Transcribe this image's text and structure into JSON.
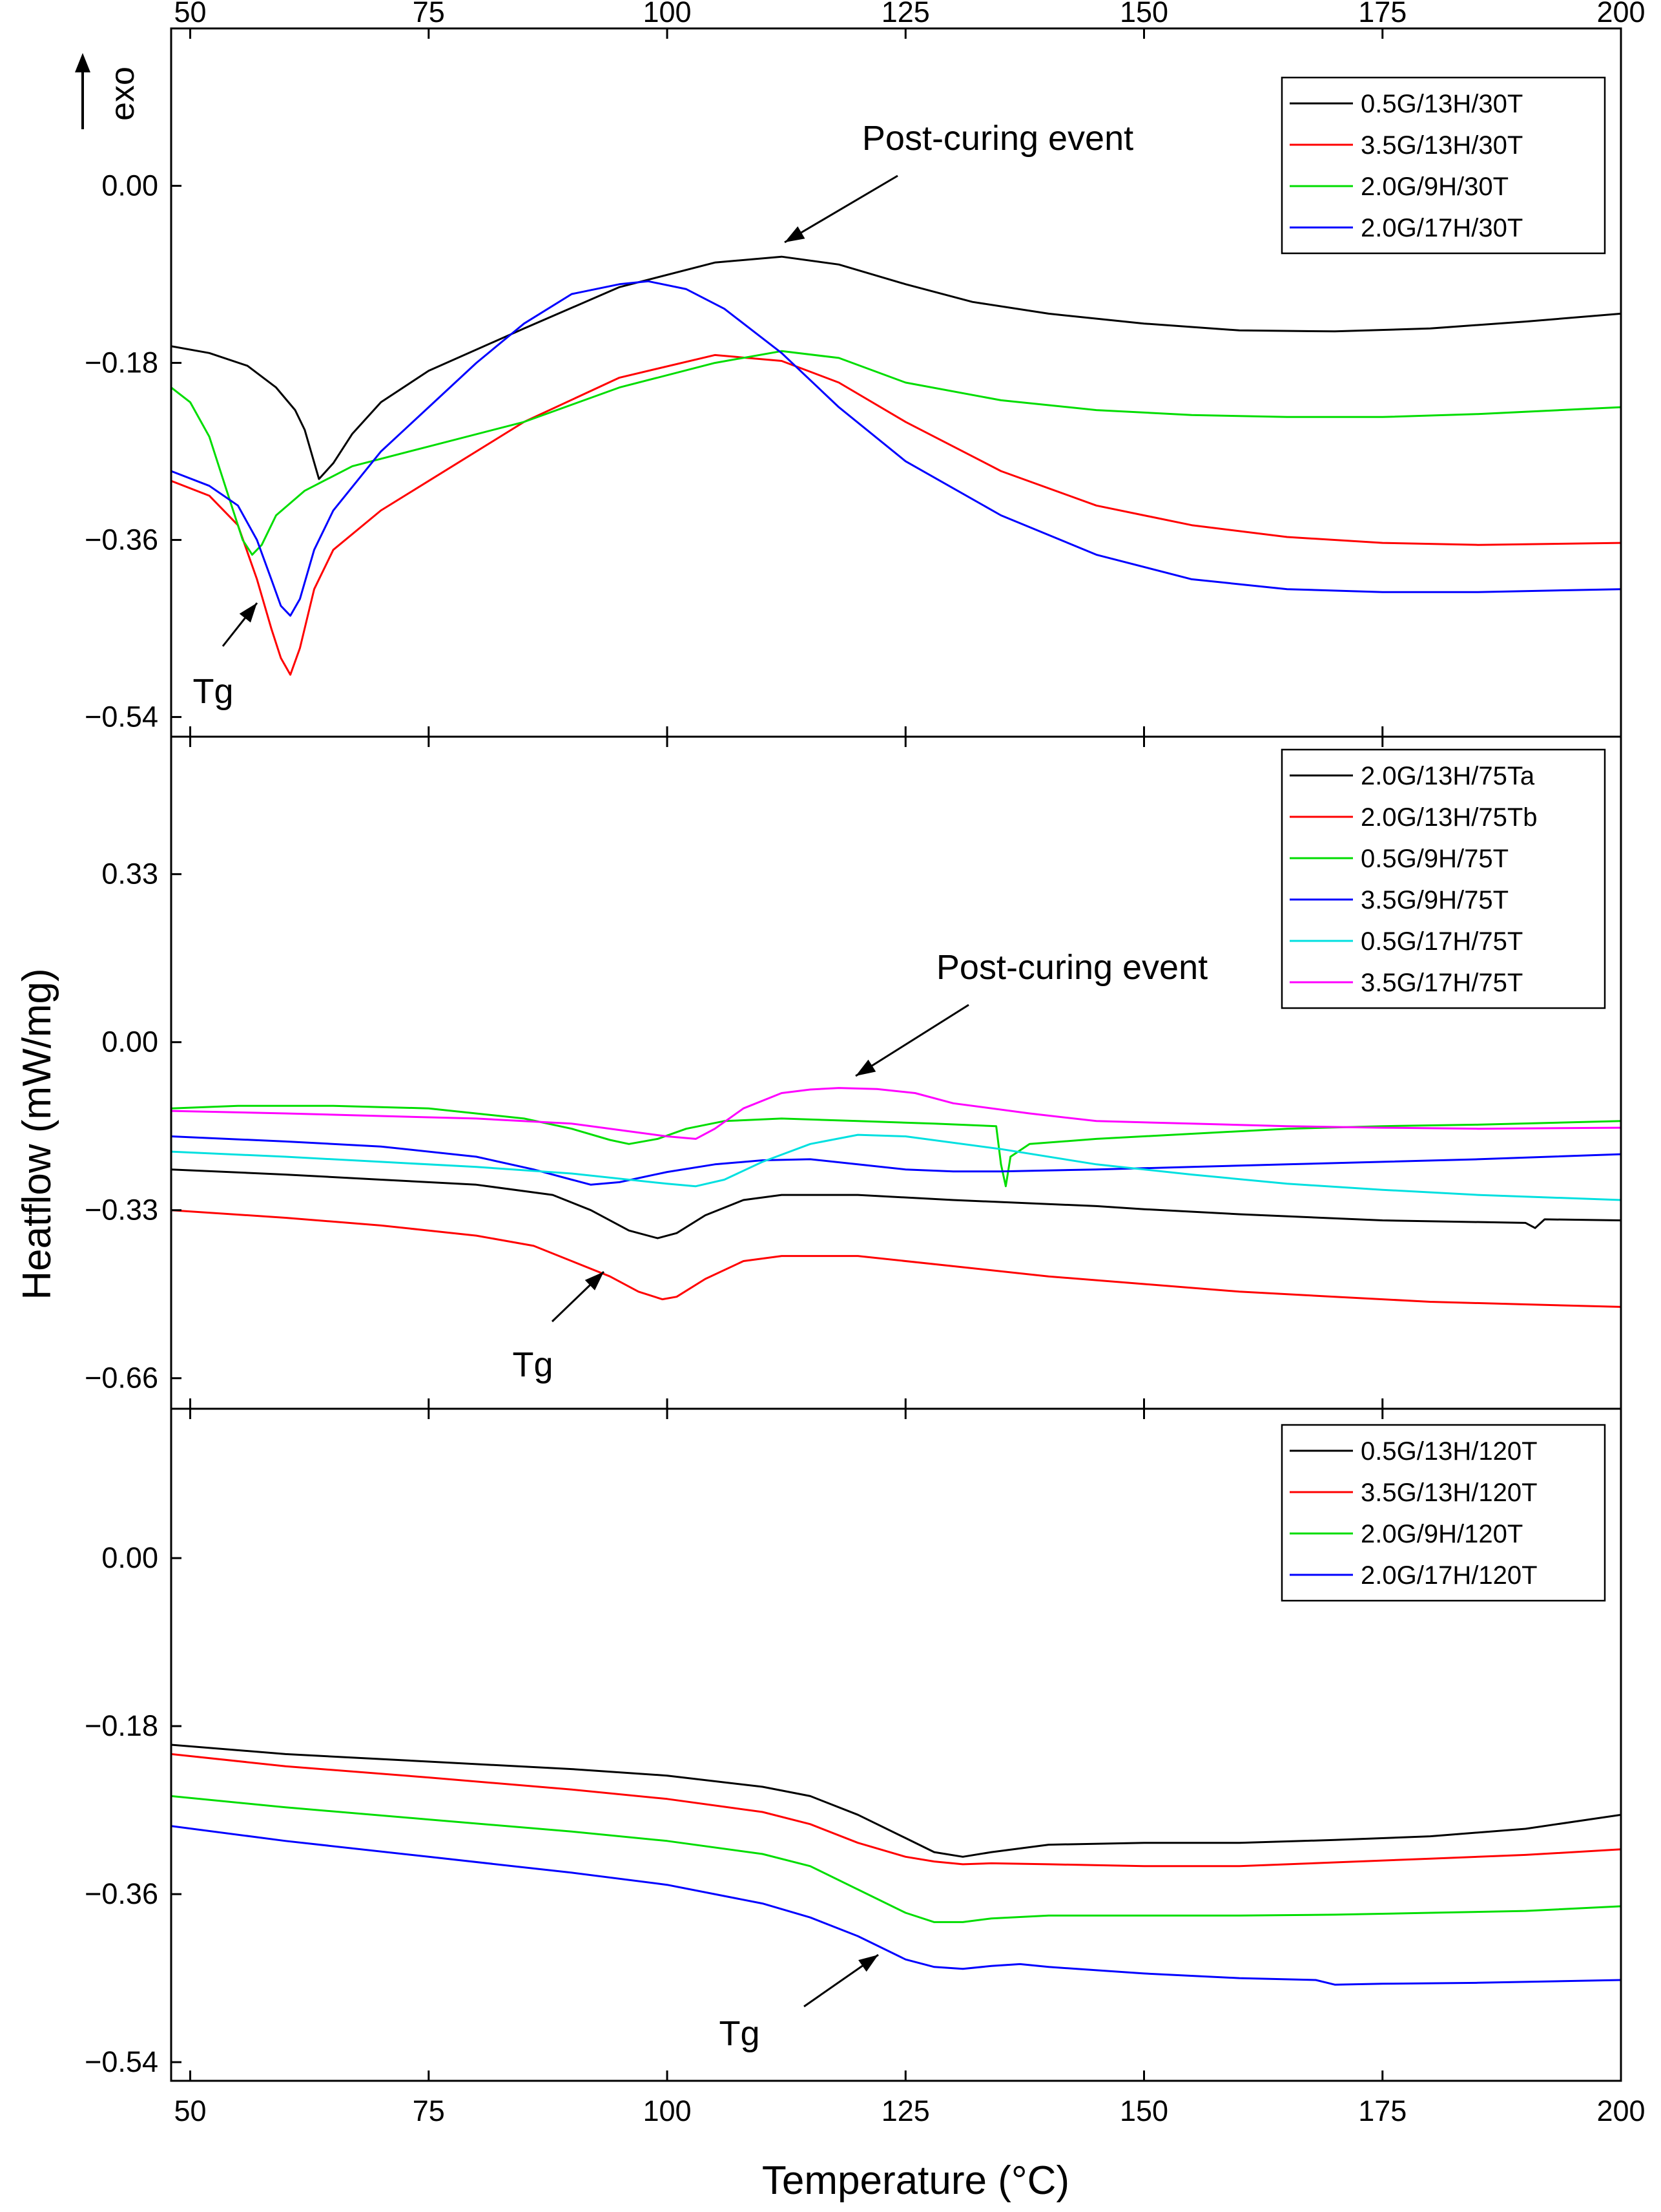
{
  "figure": {
    "xlabel": "Temperature (°C)",
    "ylabel": "Heatflow (mW/mg)",
    "exo_label": "exo"
  },
  "chart_data": [
    {
      "type": "line",
      "panel": "top",
      "xlim": [
        48,
        200
      ],
      "ylim": [
        -0.56,
        0.16
      ],
      "xticks": [
        50,
        75,
        100,
        125,
        150,
        175,
        200
      ],
      "yticks": [
        0.0,
        -0.18,
        -0.36,
        -0.54
      ],
      "ytick_labels": [
        "0.00",
        "−0.18",
        "−0.36",
        "−0.54"
      ],
      "legend_position": "top-right",
      "annotations": [
        {
          "text": "Post-curing event",
          "x": 111,
          "y": -0.025
        },
        {
          "text": "Tg",
          "x": 57,
          "y": -0.415
        }
      ],
      "series": [
        {
          "name": "0.5G/13H/30T",
          "color": "#000000",
          "x": [
            48,
            52,
            56,
            59,
            61,
            62,
            63.5,
            65,
            67,
            70,
            75,
            85,
            95,
            105,
            112,
            118,
            125,
            132,
            140,
            150,
            160,
            170,
            180,
            190,
            200
          ],
          "y": [
            -0.163,
            -0.17,
            -0.183,
            -0.205,
            -0.228,
            -0.248,
            -0.298,
            -0.282,
            -0.252,
            -0.22,
            -0.188,
            -0.145,
            -0.103,
            -0.078,
            -0.072,
            -0.08,
            -0.1,
            -0.118,
            -0.13,
            -0.14,
            -0.147,
            -0.148,
            -0.145,
            -0.138,
            -0.13
          ]
        },
        {
          "name": "3.5G/13H/30T",
          "color": "#ff0000",
          "x": [
            48,
            52,
            55,
            57,
            58.5,
            59.5,
            60.5,
            61.5,
            63,
            65,
            70,
            75,
            85,
            95,
            105,
            112,
            118,
            125,
            135,
            145,
            155,
            165,
            175,
            185,
            200
          ],
          "y": [
            -0.3,
            -0.315,
            -0.345,
            -0.4,
            -0.45,
            -0.48,
            -0.497,
            -0.47,
            -0.41,
            -0.37,
            -0.33,
            -0.3,
            -0.24,
            -0.195,
            -0.172,
            -0.178,
            -0.2,
            -0.24,
            -0.29,
            -0.325,
            -0.345,
            -0.357,
            -0.363,
            -0.365,
            -0.363
          ]
        },
        {
          "name": "2.0G/9H/30T",
          "color": "#00dd00",
          "x": [
            48,
            50,
            52,
            54,
            55.5,
            56.5,
            57.5,
            59,
            62,
            67,
            75,
            85,
            95,
            105,
            112,
            118,
            125,
            135,
            145,
            155,
            165,
            175,
            185,
            200
          ],
          "y": [
            -0.205,
            -0.22,
            -0.255,
            -0.315,
            -0.36,
            -0.375,
            -0.365,
            -0.335,
            -0.31,
            -0.285,
            -0.265,
            -0.24,
            -0.205,
            -0.18,
            -0.168,
            -0.175,
            -0.2,
            -0.218,
            -0.228,
            -0.233,
            -0.235,
            -0.235,
            -0.232,
            -0.225
          ]
        },
        {
          "name": "2.0G/17H/30T",
          "color": "#0000ff",
          "x": [
            48,
            52,
            55,
            57,
            58.5,
            59.5,
            60.5,
            61.5,
            63,
            65,
            70,
            75,
            80,
            85,
            90,
            95,
            98,
            102,
            106,
            112,
            118,
            125,
            135,
            145,
            155,
            165,
            175,
            185,
            200
          ],
          "y": [
            -0.29,
            -0.305,
            -0.325,
            -0.36,
            -0.4,
            -0.427,
            -0.437,
            -0.42,
            -0.37,
            -0.33,
            -0.27,
            -0.225,
            -0.18,
            -0.14,
            -0.11,
            -0.1,
            -0.097,
            -0.105,
            -0.125,
            -0.17,
            -0.225,
            -0.28,
            -0.335,
            -0.375,
            -0.4,
            -0.41,
            -0.413,
            -0.413,
            -0.41
          ]
        }
      ]
    },
    {
      "type": "line",
      "panel": "middle",
      "xlim": [
        48,
        200
      ],
      "ylim": [
        -0.72,
        0.6
      ],
      "xticks": [
        50,
        75,
        100,
        125,
        150,
        175,
        200
      ],
      "yticks": [
        0.33,
        0.0,
        -0.33,
        -0.66
      ],
      "ytick_labels": [
        "0.33",
        "0.00",
        "−0.33",
        "−0.66"
      ],
      "legend_position": "top-right",
      "annotations": [
        {
          "text": "Post-curing event",
          "x": 119,
          "y": 0.12
        },
        {
          "text": "Tg",
          "x": 86,
          "y": -0.64
        }
      ],
      "series": [
        {
          "name": "2.0G/13H/75Ta",
          "color": "#000000",
          "x": [
            48,
            60,
            70,
            80,
            88,
            92,
            96,
            99,
            101,
            104,
            108,
            112,
            120,
            130,
            145,
            150,
            160,
            175,
            190,
            191,
            192,
            200
          ],
          "y": [
            -0.25,
            -0.26,
            -0.27,
            -0.28,
            -0.3,
            -0.33,
            -0.37,
            -0.385,
            -0.375,
            -0.34,
            -0.31,
            -0.3,
            -0.3,
            -0.31,
            -0.322,
            -0.328,
            -0.338,
            -0.35,
            -0.355,
            -0.365,
            -0.348,
            -0.35
          ]
        },
        {
          "name": "2.0G/13H/75Tb",
          "color": "#ff0000",
          "x": [
            48,
            60,
            70,
            80,
            86,
            90,
            94,
            97,
            99.5,
            101,
            104,
            108,
            112,
            120,
            130,
            140,
            150,
            160,
            170,
            180,
            190,
            200
          ],
          "y": [
            -0.33,
            -0.345,
            -0.36,
            -0.38,
            -0.4,
            -0.43,
            -0.46,
            -0.49,
            -0.505,
            -0.5,
            -0.465,
            -0.43,
            -0.42,
            -0.42,
            -0.44,
            -0.46,
            -0.475,
            -0.49,
            -0.5,
            -0.51,
            -0.515,
            -0.52
          ]
        },
        {
          "name": "0.5G/9H/75T",
          "color": "#00dd00",
          "x": [
            48,
            55,
            65,
            75,
            85,
            90,
            94,
            96,
            99,
            102,
            106,
            112,
            120,
            128,
            134.5,
            135,
            135.5,
            136,
            138,
            145,
            155,
            165,
            175,
            185,
            200
          ],
          "y": [
            -0.13,
            -0.125,
            -0.125,
            -0.13,
            -0.15,
            -0.17,
            -0.192,
            -0.2,
            -0.19,
            -0.17,
            -0.155,
            -0.15,
            -0.155,
            -0.16,
            -0.165,
            -0.24,
            -0.283,
            -0.225,
            -0.2,
            -0.19,
            -0.18,
            -0.17,
            -0.165,
            -0.162,
            -0.155
          ]
        },
        {
          "name": "3.5G/9H/75T",
          "color": "#0000ff",
          "x": [
            48,
            60,
            70,
            80,
            86,
            90,
            92,
            95,
            100,
            105,
            110,
            115,
            120,
            125,
            130,
            135,
            145,
            155,
            165,
            175,
            185,
            200
          ],
          "y": [
            -0.185,
            -0.195,
            -0.205,
            -0.225,
            -0.25,
            -0.27,
            -0.28,
            -0.275,
            -0.255,
            -0.24,
            -0.232,
            -0.23,
            -0.24,
            -0.25,
            -0.254,
            -0.254,
            -0.25,
            -0.245,
            -0.24,
            -0.235,
            -0.23,
            -0.22
          ]
        },
        {
          "name": "0.5G/17H/75T",
          "color": "#00e0e0",
          "x": [
            48,
            60,
            70,
            80,
            90,
            100,
            103,
            106,
            110,
            115,
            120,
            125,
            135,
            145,
            155,
            165,
            175,
            185,
            200
          ],
          "y": [
            -0.215,
            -0.225,
            -0.235,
            -0.245,
            -0.258,
            -0.278,
            -0.283,
            -0.27,
            -0.235,
            -0.2,
            -0.182,
            -0.185,
            -0.21,
            -0.24,
            -0.26,
            -0.278,
            -0.29,
            -0.3,
            -0.31
          ]
        },
        {
          "name": "3.5G/17H/75T",
          "color": "#ff00ff",
          "x": [
            48,
            60,
            70,
            80,
            90,
            96,
            100,
            103,
            105,
            108,
            112,
            115,
            118,
            122,
            126,
            130,
            138,
            145,
            155,
            165,
            175,
            185,
            200
          ],
          "y": [
            -0.135,
            -0.14,
            -0.145,
            -0.15,
            -0.16,
            -0.175,
            -0.185,
            -0.19,
            -0.17,
            -0.13,
            -0.1,
            -0.093,
            -0.09,
            -0.092,
            -0.1,
            -0.12,
            -0.14,
            -0.155,
            -0.16,
            -0.165,
            -0.168,
            -0.17,
            -0.168
          ]
        }
      ]
    },
    {
      "type": "line",
      "panel": "bottom",
      "xlim": [
        48,
        200
      ],
      "ylim": [
        -0.56,
        0.16
      ],
      "xticks": [
        50,
        75,
        100,
        125,
        150,
        175,
        200
      ],
      "yticks": [
        0.0,
        -0.18,
        -0.36,
        -0.54
      ],
      "ytick_labels": [
        "0.00",
        "−0.18",
        "−0.36",
        "−0.54"
      ],
      "legend_position": "top-right",
      "annotations": [
        {
          "text": "Tg",
          "x": 109,
          "y": -0.525
        }
      ],
      "series": [
        {
          "name": "0.5G/13H/120T",
          "color": "#000000",
          "x": [
            48,
            60,
            75,
            90,
            100,
            110,
            115,
            120,
            125,
            128,
            131,
            134,
            140,
            150,
            160,
            170,
            180,
            190,
            200
          ],
          "y": [
            -0.2,
            -0.21,
            -0.218,
            -0.226,
            -0.233,
            -0.245,
            -0.255,
            -0.275,
            -0.3,
            -0.315,
            -0.32,
            -0.315,
            -0.307,
            -0.305,
            -0.305,
            -0.302,
            -0.298,
            -0.29,
            -0.275
          ]
        },
        {
          "name": "3.5G/13H/120T",
          "color": "#ff0000",
          "x": [
            48,
            60,
            75,
            90,
            100,
            110,
            115,
            120,
            125,
            128,
            131,
            134,
            140,
            150,
            160,
            170,
            180,
            190,
            200
          ],
          "y": [
            -0.21,
            -0.223,
            -0.235,
            -0.248,
            -0.258,
            -0.272,
            -0.285,
            -0.305,
            -0.32,
            -0.325,
            -0.328,
            -0.327,
            -0.328,
            -0.33,
            -0.33,
            -0.326,
            -0.322,
            -0.318,
            -0.312
          ]
        },
        {
          "name": "2.0G/9H/120T",
          "color": "#00dd00",
          "x": [
            48,
            60,
            75,
            90,
            100,
            110,
            115,
            120,
            125,
            128,
            131,
            134,
            140,
            150,
            160,
            170,
            180,
            190,
            200
          ],
          "y": [
            -0.255,
            -0.267,
            -0.28,
            -0.293,
            -0.303,
            -0.317,
            -0.33,
            -0.355,
            -0.38,
            -0.39,
            -0.39,
            -0.386,
            -0.383,
            -0.383,
            -0.383,
            -0.382,
            -0.38,
            -0.378,
            -0.373
          ]
        },
        {
          "name": "2.0G/17H/120T",
          "color": "#0000ff",
          "x": [
            48,
            60,
            75,
            90,
            100,
            110,
            115,
            120,
            125,
            128,
            131,
            134,
            137,
            140,
            150,
            160,
            168,
            170,
            175,
            185,
            200
          ],
          "y": [
            -0.287,
            -0.303,
            -0.32,
            -0.337,
            -0.35,
            -0.37,
            -0.385,
            -0.405,
            -0.43,
            -0.438,
            -0.44,
            -0.437,
            -0.435,
            -0.438,
            -0.445,
            -0.45,
            -0.452,
            -0.457,
            -0.456,
            -0.455,
            -0.452
          ]
        }
      ]
    }
  ]
}
